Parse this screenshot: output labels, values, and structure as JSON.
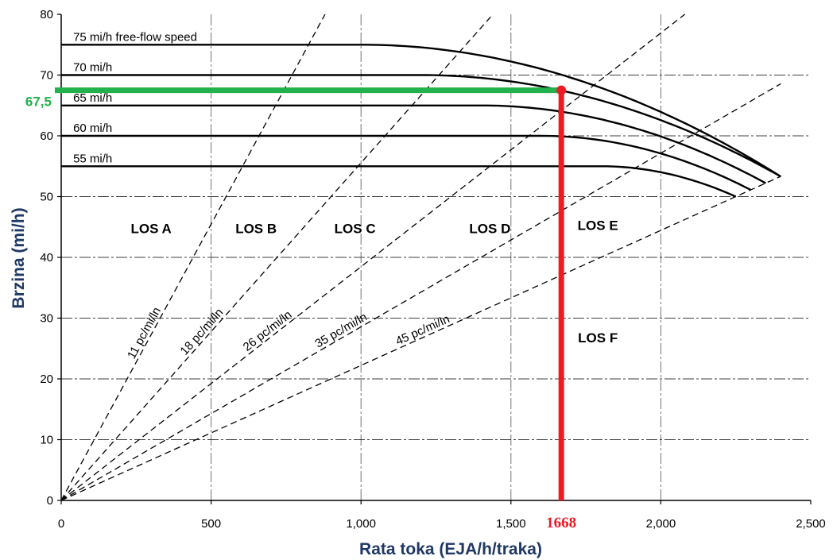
{
  "chart_data": {
    "type": "line",
    "xlabel": "Rata toka  (EJA/h/traka)",
    "ylabel": "Brzina  (mi/h)",
    "xlim": [
      0,
      2500
    ],
    "ylim": [
      0,
      80
    ],
    "x_ticks": [
      "0",
      "500",
      "1,000",
      "1,500",
      "2,000",
      "2,500"
    ],
    "y_ticks": [
      "0",
      "10",
      "20",
      "30",
      "40",
      "50",
      "60",
      "70",
      "80"
    ],
    "series": [
      {
        "name": "75 mi/h free-flow speed",
        "ffs": 75,
        "break_x": 1000,
        "end": [
          2400,
          53.3
        ]
      },
      {
        "name": "70 mi/h",
        "ffs": 70,
        "break_x": 1200,
        "end": [
          2400,
          53.3
        ]
      },
      {
        "name": "65 mi/h",
        "ffs": 65,
        "break_x": 1400,
        "end": [
          2350,
          52.2
        ]
      },
      {
        "name": "60 mi/h",
        "ffs": 60,
        "break_x": 1600,
        "end": [
          2300,
          51.1
        ]
      },
      {
        "name": "55 mi/h",
        "ffs": 55,
        "break_x": 1800,
        "end": [
          2250,
          50
        ]
      }
    ],
    "density_lines": [
      {
        "label": "11 pc/mi/ln",
        "density": 11
      },
      {
        "label": "18 pc/mi/ln",
        "density": 18
      },
      {
        "label": "26 pc/mi/ln",
        "density": 26
      },
      {
        "label": "35 pc/mi/ln",
        "density": 35
      },
      {
        "label": "45 pc/mi/ln",
        "density": 45
      }
    ],
    "los_regions": [
      {
        "label": "LOS A",
        "x": 300,
        "y": 44
      },
      {
        "label": "LOS B",
        "x": 650,
        "y": 44
      },
      {
        "label": "LOS C",
        "x": 980,
        "y": 44
      },
      {
        "label": "LOS D",
        "x": 1430,
        "y": 44
      },
      {
        "label": "LOS E",
        "x": 1790,
        "y": 44.5
      },
      {
        "label": "LOS F",
        "x": 1790,
        "y": 26
      }
    ],
    "annotations": {
      "speed_value": "67,5",
      "speed": 67.5,
      "flow_value": "1668",
      "flow": 1668,
      "speed_color": "#22b14c",
      "flow_color": "#ed1c24"
    }
  }
}
